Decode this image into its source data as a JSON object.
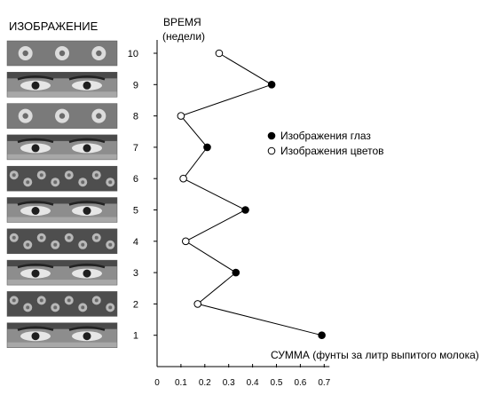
{
  "images_header": "ИЗОБРАЖЕНИЕ",
  "chart_data": {
    "type": "scatter",
    "ylabel": "ВРЕМЯ",
    "ylabel_unit": "(недели)",
    "xlabel": "СУММА (фунты за литр выпитого молока)",
    "x_ticks": [
      "0",
      "0.1",
      "0.2",
      "0.3",
      "0.4",
      "0.5",
      "0.6",
      "0.7"
    ],
    "y_ticks": [
      "1",
      "2",
      "3",
      "4",
      "5",
      "6",
      "7",
      "8",
      "9",
      "10"
    ],
    "xlim": [
      0,
      0.7
    ],
    "ylim": [
      0,
      10
    ],
    "legend_position": "right",
    "series": [
      {
        "name": "Изображения глаз",
        "marker": "filled",
        "color": "#000000",
        "points": [
          [
            1,
            0.69
          ],
          [
            3,
            0.33
          ],
          [
            5,
            0.37
          ],
          [
            7,
            0.21
          ],
          [
            9,
            0.48
          ]
        ]
      },
      {
        "name": "Изображения цветов",
        "marker": "open",
        "color": "#000000",
        "points": [
          [
            2,
            0.17
          ],
          [
            4,
            0.12
          ],
          [
            6,
            0.11
          ],
          [
            8,
            0.1
          ],
          [
            10,
            0.26
          ]
        ]
      }
    ],
    "connected_order": [
      [
        1,
        0.69
      ],
      [
        2,
        0.17
      ],
      [
        3,
        0.33
      ],
      [
        4,
        0.12
      ],
      [
        5,
        0.37
      ],
      [
        6,
        0.11
      ],
      [
        7,
        0.21
      ],
      [
        8,
        0.1
      ],
      [
        9,
        0.48
      ],
      [
        10,
        0.26
      ]
    ]
  },
  "image_rows": [
    {
      "week": 10,
      "kind": "flowers"
    },
    {
      "week": 9,
      "kind": "eyes"
    },
    {
      "week": 8,
      "kind": "flowers"
    },
    {
      "week": 7,
      "kind": "eyes"
    },
    {
      "week": 6,
      "kind": "flowers"
    },
    {
      "week": 5,
      "kind": "eyes"
    },
    {
      "week": 4,
      "kind": "flowers"
    },
    {
      "week": 3,
      "kind": "eyes"
    },
    {
      "week": 2,
      "kind": "flowers"
    },
    {
      "week": 1,
      "kind": "eyes"
    }
  ]
}
